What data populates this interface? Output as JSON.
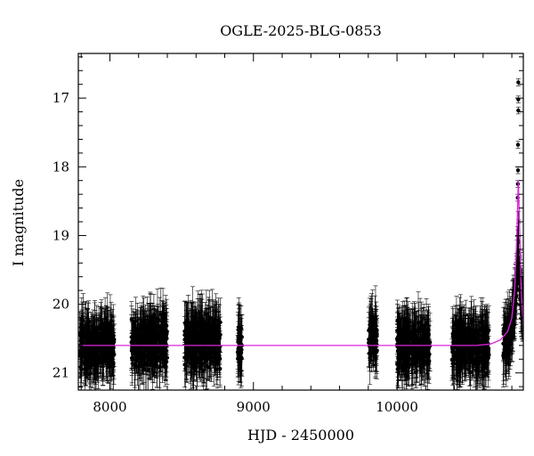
{
  "chart_data": {
    "type": "scatter",
    "title": "OGLE-2025-BLG-0853",
    "xlabel": "HJD - 2450000",
    "ylabel": "I magnitude",
    "xlim": [
      7780,
      10880
    ],
    "ylim": [
      21.25,
      16.35
    ],
    "y_inverted": true,
    "grid": false,
    "x_ticks": [
      8000,
      9000,
      10000
    ],
    "y_ticks": [
      17,
      18,
      19,
      20,
      21
    ],
    "x_tick_labels": [
      "8000",
      "9000",
      "10000"
    ],
    "y_tick_labels": [
      "17",
      "18",
      "19",
      "20",
      "21"
    ],
    "colors": {
      "points": "#000000",
      "model": "#dd22dd"
    },
    "observing_seasons": [
      {
        "x_start": 7790,
        "x_end": 8030,
        "median_mag": 20.6
      },
      {
        "x_start": 8150,
        "x_end": 8400,
        "median_mag": 20.55
      },
      {
        "x_start": 8520,
        "x_end": 8770,
        "median_mag": 20.55
      },
      {
        "x_start": 8890,
        "x_end": 8920,
        "median_mag": 20.6
      },
      {
        "x_start": 9800,
        "x_end": 9860,
        "median_mag": 20.5
      },
      {
        "x_start": 10000,
        "x_end": 10230,
        "median_mag": 20.6
      },
      {
        "x_start": 10380,
        "x_end": 10640,
        "median_mag": 20.6
      },
      {
        "x_start": 10740,
        "x_end": 10880,
        "median_mag": 20.3
      }
    ],
    "peak_points": [
      {
        "x": 10845,
        "y": 16.77
      },
      {
        "x": 10845,
        "y": 17.02
      },
      {
        "x": 10845,
        "y": 17.18
      },
      {
        "x": 10843,
        "y": 17.68
      },
      {
        "x": 10843,
        "y": 18.05
      },
      {
        "x": 10842,
        "y": 18.25
      },
      {
        "x": 10841,
        "y": 18.45
      }
    ],
    "model": {
      "baseline_mag": 20.6,
      "t0": 10845,
      "peak_mag": 18.2,
      "curve_points": [
        {
          "x": 7780,
          "y": 20.6
        },
        {
          "x": 10550,
          "y": 20.6
        },
        {
          "x": 10650,
          "y": 20.58
        },
        {
          "x": 10720,
          "y": 20.52
        },
        {
          "x": 10770,
          "y": 20.4
        },
        {
          "x": 10800,
          "y": 20.2
        },
        {
          "x": 10820,
          "y": 19.8
        },
        {
          "x": 10835,
          "y": 19.0
        },
        {
          "x": 10845,
          "y": 18.2
        },
        {
          "x": 10855,
          "y": 19.0
        },
        {
          "x": 10865,
          "y": 19.8
        },
        {
          "x": 10880,
          "y": 20.3
        }
      ]
    }
  }
}
